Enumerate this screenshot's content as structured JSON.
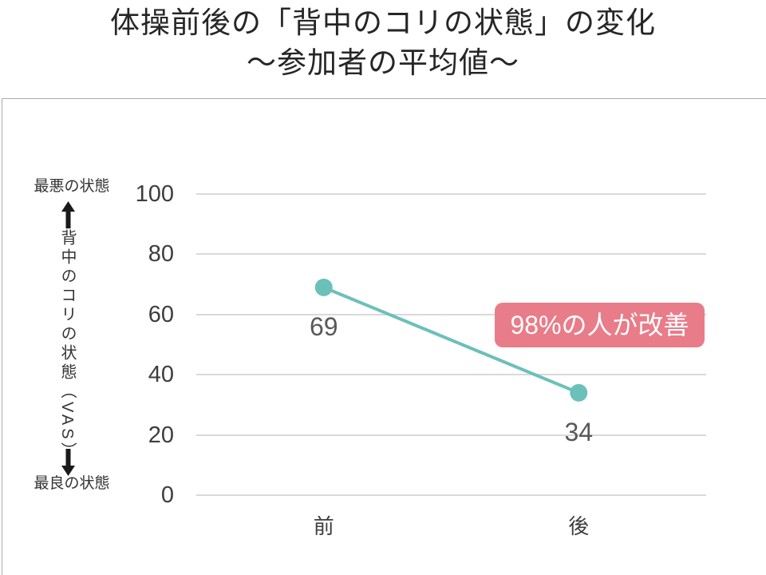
{
  "title": {
    "line1": "体操前後の「背中のコリの状態」の変化",
    "line2": "～参加者の平均値～"
  },
  "y_axis": {
    "top_label": "最悪の状態",
    "bottom_label": "最良の状態",
    "axis_title": "背中のコリの状態（VAS）"
  },
  "annotation": {
    "text": "98%の人が改善"
  },
  "chart_data": {
    "type": "line",
    "categories": [
      "前",
      "後"
    ],
    "values": [
      69,
      34
    ],
    "data_labels": [
      "69",
      "34"
    ],
    "title": "体操前後の「背中のコリの状態」の変化 ～参加者の平均値～",
    "xlabel": "",
    "ylabel": "背中のコリの状態（VAS）",
    "ylabel_max_annotation": "最悪の状態",
    "ylabel_min_annotation": "最良の状態",
    "ylim": [
      0,
      100
    ],
    "yticks": [
      0,
      20,
      40,
      60,
      80,
      100
    ],
    "grid": true,
    "legend": "none",
    "annotations": [
      {
        "text": "98%の人が改善",
        "bg": "#e97c89",
        "color": "#ffffff"
      }
    ],
    "colors": {
      "series": "#6cc0ba",
      "marker": "#6cc0ba",
      "gridline": "#d9d9d9",
      "tick_label": "#3d3d3d",
      "data_label": "#595959",
      "annotation_bg": "#e97c89",
      "annotation_text": "#ffffff"
    }
  }
}
